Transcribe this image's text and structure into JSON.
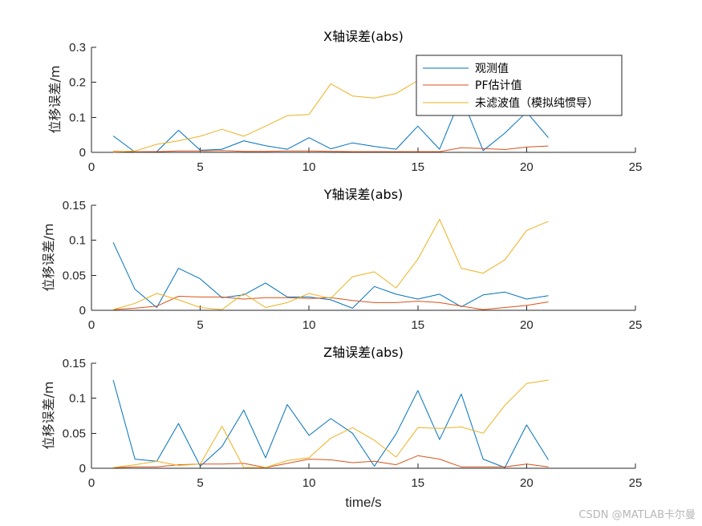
{
  "chart_data": [
    {
      "type": "line",
      "title": "X轴误差(abs)",
      "ylabel": "位移误差/m",
      "xlabel": "",
      "xlim": [
        0,
        25
      ],
      "ylim": [
        0,
        0.3
      ],
      "xticks": [
        "0",
        "5",
        "10",
        "15",
        "20",
        "25"
      ],
      "yticks": [
        "0",
        "0.1",
        "0.2",
        "0.3"
      ],
      "x": [
        1,
        2,
        3,
        4,
        5,
        6,
        7,
        8,
        9,
        10,
        11,
        12,
        13,
        14,
        15,
        16,
        17,
        18,
        19,
        20,
        21
      ],
      "legend": "top-right",
      "series": [
        {
          "name": "观测值",
          "color": "#0072BD",
          "values": [
            0.047,
            0.001,
            0.002,
            0.063,
            0.006,
            0.009,
            0.033,
            0.019,
            0.009,
            0.042,
            0.01,
            0.027,
            0.017,
            0.009,
            0.075,
            0.009,
            0.16,
            0.005,
            0.055,
            0.115,
            0.042
          ]
        },
        {
          "name": "PF估计值",
          "color": "#D95319",
          "values": [
            0.003,
            0.002,
            0.002,
            0.004,
            0.004,
            0.005,
            0.003,
            0.003,
            0.004,
            0.004,
            0.003,
            0.002,
            0.002,
            0.002,
            0.002,
            0.002,
            0.013,
            0.011,
            0.008,
            0.015,
            0.018
          ]
        },
        {
          "name": "未滤波值（模拟纯惯导）",
          "color": "#EDB120",
          "values": [
            0.001,
            0.004,
            0.023,
            0.033,
            0.046,
            0.066,
            0.046,
            0.075,
            0.105,
            0.108,
            0.196,
            0.161,
            0.155,
            0.168,
            0.205,
            0.21,
            0.22,
            0.225,
            0.23,
            0.235,
            0.24
          ]
        }
      ]
    },
    {
      "type": "line",
      "title": "Y轴误差(abs)",
      "ylabel": "位移误差/m",
      "xlabel": "",
      "xlim": [
        0,
        25
      ],
      "ylim": [
        0,
        0.15
      ],
      "xticks": [
        "0",
        "5",
        "10",
        "15",
        "20",
        "25"
      ],
      "yticks": [
        "0",
        "0.05",
        "0.1",
        "0.15"
      ],
      "x": [
        1,
        2,
        3,
        4,
        5,
        6,
        7,
        8,
        9,
        10,
        11,
        12,
        13,
        14,
        15,
        16,
        17,
        18,
        19,
        20,
        21
      ],
      "series": [
        {
          "name": "观测值",
          "color": "#0072BD",
          "values": [
            0.097,
            0.03,
            0.004,
            0.06,
            0.045,
            0.018,
            0.022,
            0.039,
            0.019,
            0.019,
            0.015,
            0.003,
            0.034,
            0.023,
            0.016,
            0.023,
            0.005,
            0.022,
            0.026,
            0.016,
            0.021
          ]
        },
        {
          "name": "PF估计值",
          "color": "#D95319",
          "values": [
            0.001,
            0.003,
            0.006,
            0.02,
            0.019,
            0.019,
            0.016,
            0.018,
            0.018,
            0.017,
            0.018,
            0.014,
            0.011,
            0.011,
            0.013,
            0.011,
            0.006,
            0.001,
            0.004,
            0.007,
            0.012
          ]
        },
        {
          "name": "未滤波值（模拟纯惯导）",
          "color": "#EDB120",
          "values": [
            0.001,
            0.01,
            0.024,
            0.015,
            0.004,
            0.001,
            0.024,
            0.004,
            0.011,
            0.024,
            0.017,
            0.048,
            0.055,
            0.032,
            0.073,
            0.13,
            0.06,
            0.053,
            0.072,
            0.114,
            0.127
          ]
        }
      ]
    },
    {
      "type": "line",
      "title": "Z轴误差(abs)",
      "ylabel": "位移误差/m",
      "xlabel": "time/s",
      "xlim": [
        0,
        25
      ],
      "ylim": [
        0,
        0.15
      ],
      "xticks": [
        "0",
        "5",
        "10",
        "15",
        "20",
        "25"
      ],
      "yticks": [
        "0",
        "0.05",
        "0.1",
        "0.15"
      ],
      "x": [
        1,
        2,
        3,
        4,
        5,
        6,
        7,
        8,
        9,
        10,
        11,
        12,
        13,
        14,
        15,
        16,
        17,
        18,
        19,
        20,
        21
      ],
      "series": [
        {
          "name": "观测值",
          "color": "#0072BD",
          "values": [
            0.126,
            0.013,
            0.01,
            0.064,
            0.003,
            0.031,
            0.083,
            0.015,
            0.091,
            0.047,
            0.071,
            0.05,
            0.003,
            0.049,
            0.111,
            0.041,
            0.106,
            0.013,
            0.001,
            0.062,
            0.012
          ]
        },
        {
          "name": "PF估计值",
          "color": "#D95319",
          "values": [
            0.001,
            0.002,
            0.002,
            0.005,
            0.006,
            0.006,
            0.007,
            0.001,
            0.007,
            0.013,
            0.012,
            0.008,
            0.01,
            0.005,
            0.018,
            0.013,
            0.002,
            0.002,
            0.002,
            0.006,
            0.002
          ]
        },
        {
          "name": "未滤波值（模拟纯惯导）",
          "color": "#EDB120",
          "values": [
            0.001,
            0.005,
            0.01,
            0.004,
            0.006,
            0.06,
            0.001,
            0.001,
            0.011,
            0.015,
            0.043,
            0.058,
            0.04,
            0.016,
            0.058,
            0.057,
            0.059,
            0.05,
            0.09,
            0.121,
            0.126
          ]
        }
      ]
    }
  ],
  "watermark": "CSDN @MATLAB卡尔曼"
}
